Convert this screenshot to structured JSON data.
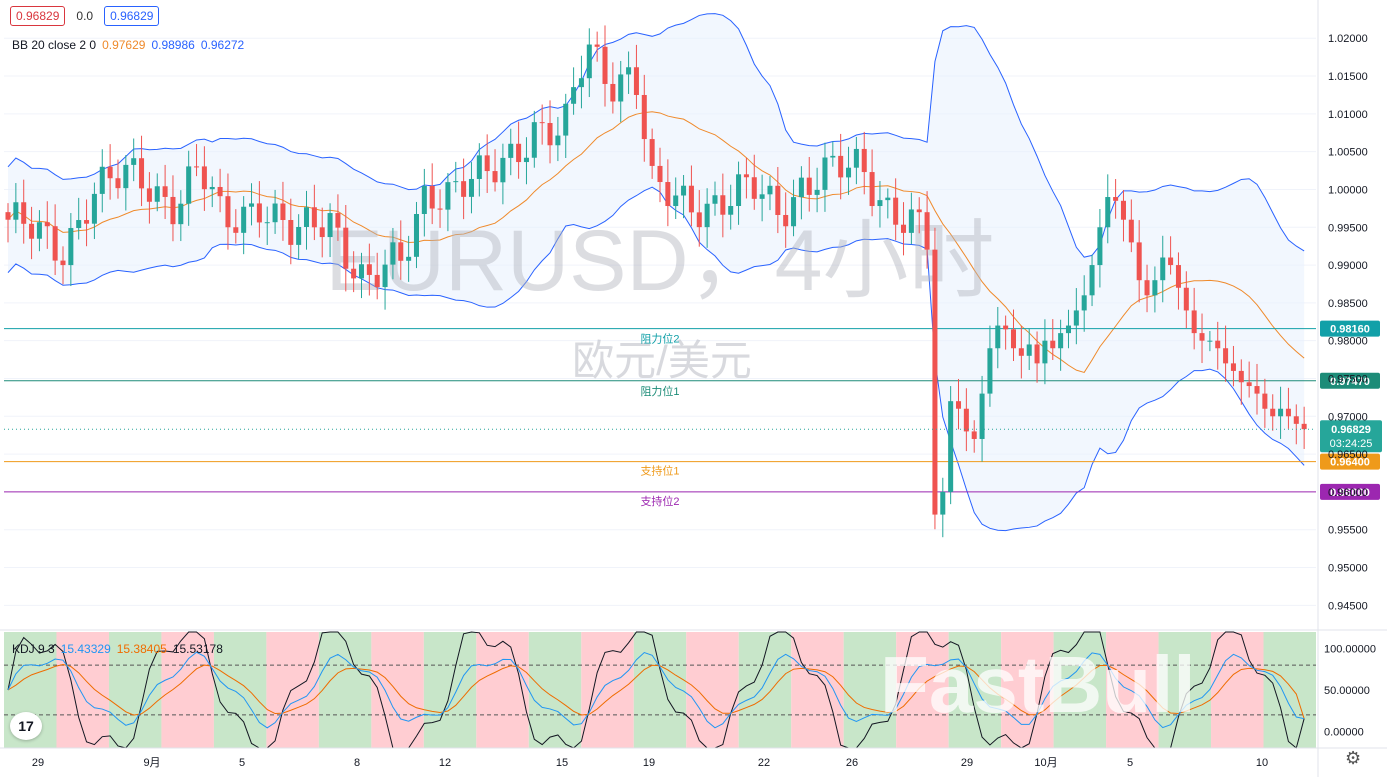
{
  "header": {
    "close_chip": "0.96829",
    "change": "0.0",
    "bid_chip": "0.96829"
  },
  "indicators": {
    "bb": {
      "label": "BB 20 close 2 0",
      "mid": "0.97629",
      "upper": "0.98986",
      "lower": "0.96272",
      "mid_color": "#ef8a2b",
      "band_color": "#2962ff"
    },
    "kdj": {
      "label": "KDJ 9 3",
      "k": "15.43329",
      "d": "15.38405",
      "j": "15.53178",
      "k_color": "#2196f3",
      "d_color": "#ef6c00",
      "j_color": "#131722"
    }
  },
  "watermark": {
    "symbol": "EURUSD，4小时",
    "subtitle": "欧元/美元",
    "brand": "FastBull"
  },
  "colors": {
    "up": "#26a69a",
    "down": "#ef5350",
    "bb_fill": "#e8f0fe"
  },
  "chart_data": {
    "type": "candlestick",
    "title": "EURUSD，4小时",
    "subtitle": "欧元/美元",
    "ylim": [
      0.942,
      1.024
    ],
    "y_ticks": [
      "1.02000",
      "1.01500",
      "1.01000",
      "1.00500",
      "1.00000",
      "0.99500",
      "0.99000",
      "0.98500",
      "0.98000",
      "0.97500",
      "0.97000",
      "0.96500",
      "0.96000",
      "0.95500",
      "0.95000",
      "0.94500"
    ],
    "x_ticks": [
      "29",
      "9月",
      "5",
      "8",
      "12",
      "15",
      "19",
      "22",
      "26",
      "29",
      "10月",
      "5",
      "10"
    ],
    "levels": [
      {
        "label": "阻力位2",
        "value": 0.9816,
        "tag": "0.98160",
        "color": "#12a0a8"
      },
      {
        "label": "阻力位1",
        "value": 0.9747,
        "tag": "0.97470",
        "color": "#1d8c78"
      },
      {
        "label": "支持位1",
        "value": 0.964,
        "tag": "0.96400",
        "color": "#ef9a1a"
      },
      {
        "label": "支持位2",
        "value": 0.96,
        "tag": "0.96000",
        "color": "#9c27b0"
      }
    ],
    "current_price": {
      "value": 0.96829,
      "tag": "0.96829",
      "countdown": "03:24:25"
    },
    "anchors": [
      {
        "x": 0,
        "price": 0.996
      },
      {
        "x": 0.03,
        "price": 0.993
      },
      {
        "x": 0.045,
        "price": 0.992
      },
      {
        "x": 0.07,
        "price": 1.0
      },
      {
        "x": 0.11,
        "price": 1.0015
      },
      {
        "x": 0.14,
        "price": 0.9985
      },
      {
        "x": 0.16,
        "price": 1.0025
      },
      {
        "x": 0.18,
        "price": 0.995
      },
      {
        "x": 0.21,
        "price": 0.999
      },
      {
        "x": 0.24,
        "price": 0.993
      },
      {
        "x": 0.27,
        "price": 0.9965
      },
      {
        "x": 0.3,
        "price": 0.9875
      },
      {
        "x": 0.33,
        "price": 0.99
      },
      {
        "x": 0.35,
        "price": 1.0005
      },
      {
        "x": 0.37,
        "price": 1.0
      },
      {
        "x": 0.4,
        "price": 1.001
      },
      {
        "x": 0.44,
        "price": 1.0085
      },
      {
        "x": 0.465,
        "price": 1.0065
      },
      {
        "x": 0.485,
        "price": 1.019
      },
      {
        "x": 0.505,
        "price": 1.015
      },
      {
        "x": 0.525,
        "price": 1.0155
      },
      {
        "x": 0.54,
        "price": 0.999
      },
      {
        "x": 0.57,
        "price": 0.9985
      },
      {
        "x": 0.6,
        "price": 0.9985
      },
      {
        "x": 0.625,
        "price": 0.9995
      },
      {
        "x": 0.645,
        "price": 0.9975
      },
      {
        "x": 0.665,
        "price": 1.001
      },
      {
        "x": 0.695,
        "price": 1.002
      },
      {
        "x": 0.715,
        "price": 1.003
      },
      {
        "x": 0.735,
        "price": 0.9985
      },
      {
        "x": 0.765,
        "price": 0.994
      },
      {
        "x": 0.79,
        "price": 0.985
      },
      {
        "x": 0.81,
        "price": 0.9825
      },
      {
        "x": 0.83,
        "price": 0.984
      },
      {
        "x": 0.845,
        "price": 0.98
      },
      {
        "x": 0.86,
        "price": 0.974
      },
      {
        "x": 0.875,
        "price": 0.965
      },
      {
        "x": 0.89,
        "price": 0.9575
      },
      {
        "x": 0.905,
        "price": 0.962
      },
      {
        "x": 0.92,
        "price": 0.966
      },
      {
        "x": 0.935,
        "price": 0.96
      },
      {
        "x": 0.95,
        "price": 0.959
      },
      {
        "x": 0.965,
        "price": 0.9565
      },
      {
        "x": 0.98,
        "price": 0.957
      }
    ],
    "candles_part2": [
      {
        "price": 0.957
      },
      {
        "price": 0.96
      },
      {
        "price": 0.972
      },
      {
        "price": 0.971
      },
      {
        "price": 0.968
      },
      {
        "price": 0.967
      },
      {
        "price": 0.973
      },
      {
        "price": 0.979
      },
      {
        "price": 0.982
      },
      {
        "price": 0.9815
      },
      {
        "price": 0.979
      },
      {
        "price": 0.978
      },
      {
        "price": 0.9795
      },
      {
        "price": 0.977
      },
      {
        "price": 0.98
      },
      {
        "price": 0.979
      },
      {
        "price": 0.981
      },
      {
        "price": 0.982
      },
      {
        "price": 0.984
      },
      {
        "price": 0.986
      },
      {
        "price": 0.99
      },
      {
        "price": 0.995
      },
      {
        "price": 0.999
      },
      {
        "price": 0.9985
      },
      {
        "price": 0.996
      },
      {
        "price": 0.993
      },
      {
        "price": 0.988
      },
      {
        "price": 0.986
      },
      {
        "price": 0.988
      },
      {
        "price": 0.991
      },
      {
        "price": 0.99
      },
      {
        "price": 0.987
      },
      {
        "price": 0.984
      },
      {
        "price": 0.981
      },
      {
        "price": 0.98
      },
      {
        "price": 0.98
      },
      {
        "price": 0.979
      },
      {
        "price": 0.977
      },
      {
        "price": 0.976
      },
      {
        "price": 0.9745
      },
      {
        "price": 0.974
      },
      {
        "price": 0.973
      },
      {
        "price": 0.971
      },
      {
        "price": 0.97
      },
      {
        "price": 0.971
      },
      {
        "price": 0.97
      },
      {
        "price": 0.969
      },
      {
        "price": 0.9683
      }
    ],
    "kdj_ylim": [
      -20,
      120
    ],
    "kdj_ticks": [
      "100.00000",
      "50.00000",
      "0.00000"
    ],
    "kdj_bg_pattern": [
      "up",
      "down",
      "up",
      "down",
      "up",
      "down",
      "up",
      "down",
      "up",
      "down",
      "up",
      "down",
      "up",
      "down",
      "up",
      "down",
      "up",
      "down",
      "up",
      "down",
      "up",
      "down",
      "up",
      "down",
      "up"
    ]
  }
}
